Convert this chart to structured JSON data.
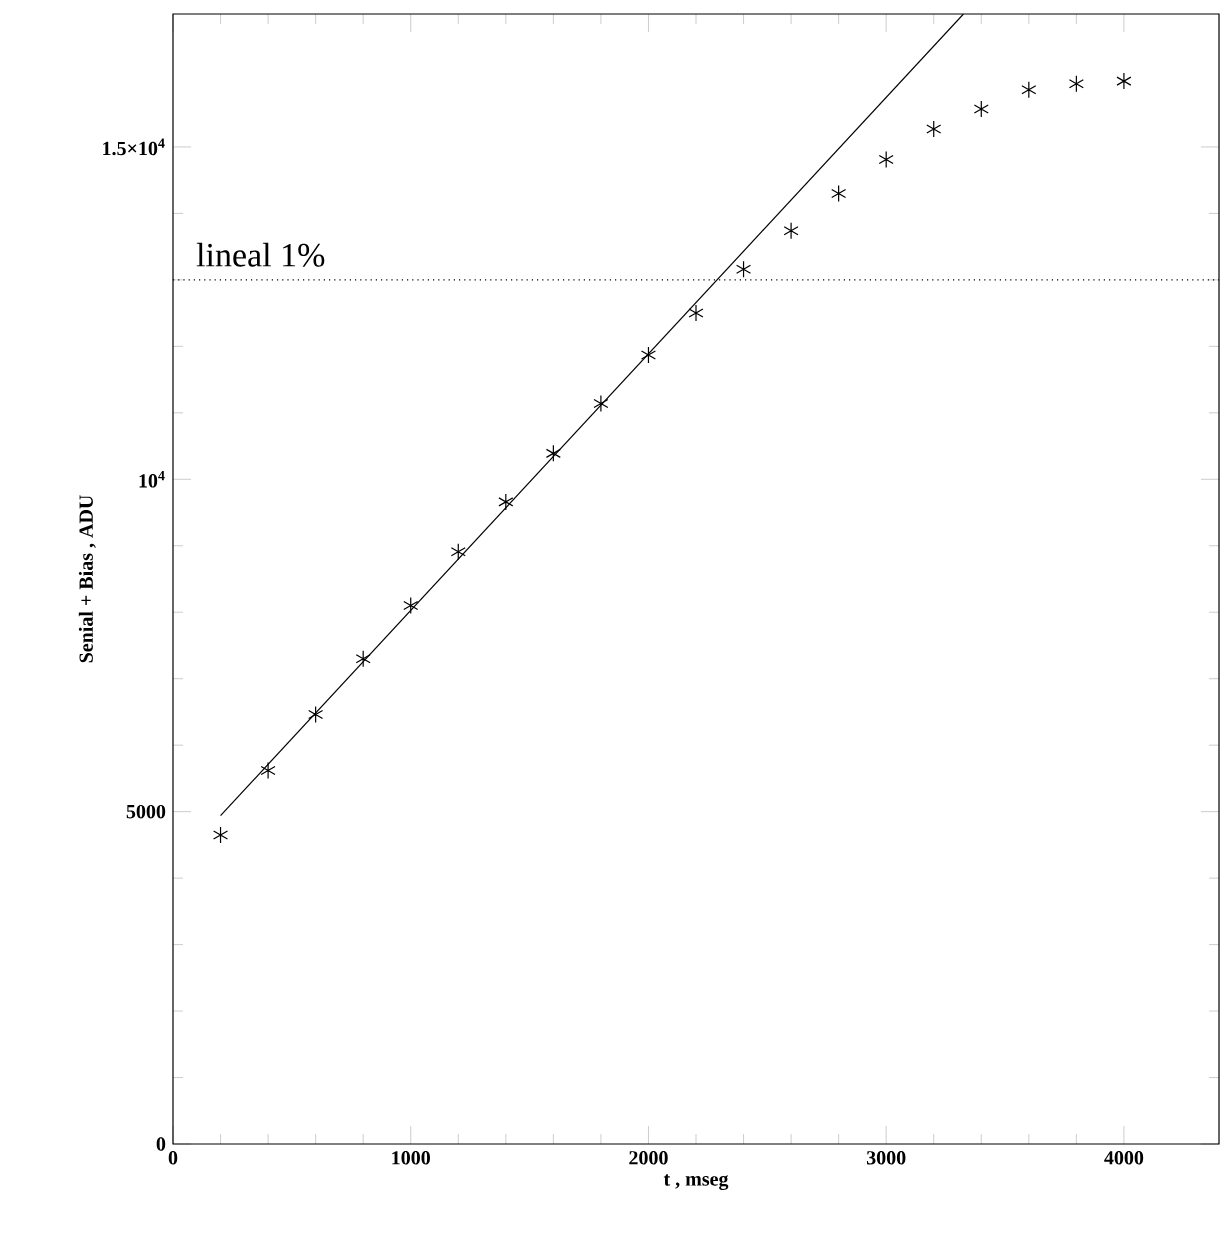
{
  "chart_data": {
    "type": "scatter",
    "xlabel": "t , mseg",
    "ylabel": "Senial + Bias , ADU",
    "xlim": [
      0,
      4400
    ],
    "ylim": [
      0,
      17000
    ],
    "xticks": [
      0,
      1000,
      2000,
      3000,
      4000
    ],
    "yticks": [
      0,
      5000,
      {
        "value": 10000,
        "label": "10$^{4}$"
      },
      {
        "value": 15000,
        "label": "1.5×10$^{4}$"
      }
    ],
    "grid": false,
    "series": [
      {
        "color": "#000000",
        "marker": "cross",
        "x": [
          200,
          400,
          600,
          800,
          1000,
          1200,
          1400,
          1600,
          1800,
          2000,
          2200,
          2400,
          2600,
          2800,
          3000,
          3200,
          3400,
          3600,
          3800,
          4000
        ],
        "values": [
          4650,
          5620,
          6460,
          7300,
          8100,
          8910,
          9660,
          10390,
          11140,
          11870,
          12500,
          13160,
          13740,
          14300,
          14810,
          15270,
          15570,
          15860,
          15950,
          15990
        ]
      },
      {
        "type": "line",
        "color": "#000000",
        "marker": "none",
        "line_style": "solid",
        "x": [
          200,
          3325
        ],
        "values": [
          4940,
          17000
        ]
      }
    ],
    "ref_lines": [
      {
        "axis": "y",
        "value": 13000,
        "label": "lineal 1%",
        "line_style": "dotted",
        "color": "#000000"
      }
    ]
  }
}
